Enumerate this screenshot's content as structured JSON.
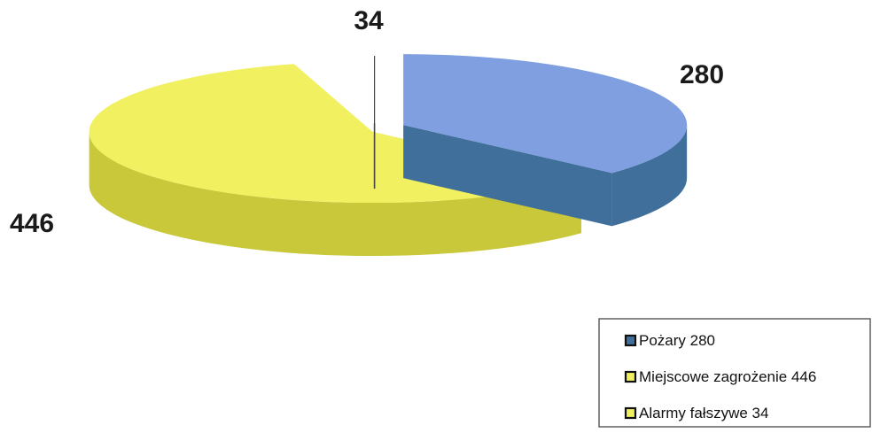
{
  "chart_data": {
    "type": "pie",
    "title": "",
    "style": "3d-exploded",
    "categories": [
      "Pożary",
      "Miejscowe zagrożenie",
      "Alarmy fałszywe"
    ],
    "values": [
      280,
      446,
      34
    ],
    "data_labels": [
      "280",
      "446",
      "34"
    ],
    "colors": {
      "top": [
        "#7f9fe0",
        "#f0f060",
        "#ffffff"
      ],
      "side": [
        "#3f6f9a",
        "#c8c83a",
        "#ffffff"
      ]
    },
    "legend": {
      "placement": "bottom-right",
      "entries": [
        "Pożary 280",
        "Miejscowe zagrożenie 446",
        "Alarmy fałszywe 34"
      ]
    }
  }
}
